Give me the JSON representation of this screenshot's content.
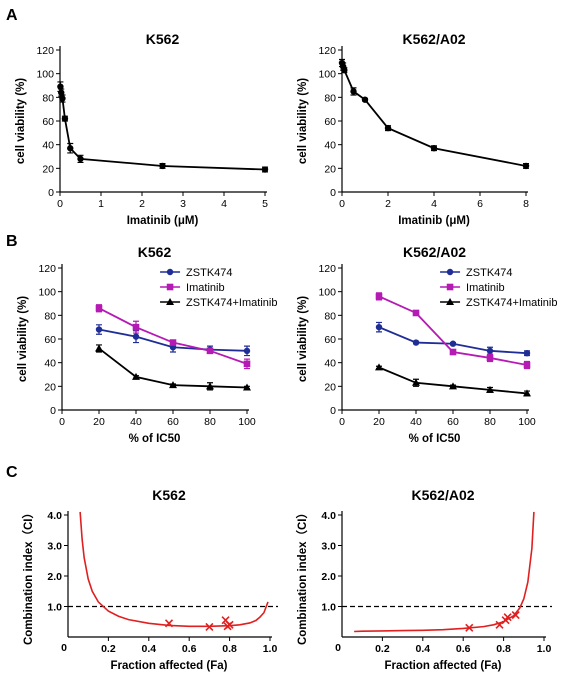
{
  "panels": {
    "A": "A",
    "B": "B",
    "C": "C"
  },
  "chart_data": [
    {
      "id": "A1",
      "panel": "A",
      "type": "line",
      "title": "K562",
      "xlabel": "Imatinib (μM)",
      "ylabel": "cell viability (%)",
      "xlim": [
        0,
        5
      ],
      "ylim": [
        0,
        120
      ],
      "xticks": [
        0,
        1,
        2,
        3,
        4,
        5
      ],
      "yticks": [
        0,
        20,
        40,
        60,
        80,
        100,
        120
      ],
      "series": [
        {
          "color": "#000000",
          "marker": "dot",
          "error_bars": true,
          "x": [
            0.01,
            0.03,
            0.06,
            0.12,
            0.25,
            0.5,
            2.5,
            5
          ],
          "y": [
            89,
            84,
            79,
            62,
            37,
            28,
            22,
            19
          ],
          "err": [
            4,
            3,
            3,
            2,
            4,
            3,
            2,
            2
          ]
        }
      ]
    },
    {
      "id": "A2",
      "panel": "A",
      "type": "line",
      "title": "K562/A02",
      "xlabel": "Imatinib (μM)",
      "ylabel": "cell viability (%)",
      "xlim": [
        0,
        8
      ],
      "ylim": [
        0,
        120
      ],
      "xticks": [
        0,
        2,
        4,
        6,
        8
      ],
      "yticks": [
        0,
        20,
        40,
        60,
        80,
        100,
        120
      ],
      "series": [
        {
          "color": "#000000",
          "marker": "dot",
          "error_bars": true,
          "x": [
            0,
            0.05,
            0.1,
            0.5,
            1,
            2,
            4,
            8
          ],
          "y": [
            109,
            106,
            103,
            85,
            78,
            54,
            37,
            22
          ],
          "err": [
            3,
            3,
            2,
            3,
            1,
            2,
            2,
            2
          ]
        }
      ]
    },
    {
      "id": "B1",
      "panel": "B",
      "type": "line",
      "title": "K562",
      "xlabel": "% of IC50",
      "ylabel": "cell viability (%)",
      "xlim": [
        0,
        100
      ],
      "ylim": [
        0,
        120
      ],
      "xticks": [
        0,
        20,
        40,
        60,
        80,
        100
      ],
      "yticks": [
        0,
        20,
        40,
        60,
        80,
        100,
        120
      ],
      "legend": "top-right",
      "series": [
        {
          "name": "ZSTK474",
          "color": "#1f2d96",
          "marker": "dot",
          "error_bars": true,
          "x": [
            20,
            40,
            60,
            80,
            100
          ],
          "y": [
            68,
            62,
            53,
            51,
            50
          ],
          "err": [
            4,
            5,
            4,
            3,
            4
          ]
        },
        {
          "name": "Imatinib",
          "color": "#b51ab5",
          "marker": "square",
          "error_bars": true,
          "x": [
            20,
            40,
            60,
            80,
            100
          ],
          "y": [
            86,
            70,
            57,
            50,
            39
          ],
          "err": [
            3,
            5,
            2,
            2,
            4
          ]
        },
        {
          "name": "ZSTK474+Imatinib",
          "color": "#000000",
          "marker": "triangle",
          "error_bars": true,
          "x": [
            20,
            40,
            60,
            80,
            100
          ],
          "y": [
            52,
            28,
            21,
            20,
            19
          ],
          "err": [
            3,
            1,
            1,
            3,
            1
          ]
        }
      ]
    },
    {
      "id": "B2",
      "panel": "B",
      "type": "line",
      "title": "K562/A02",
      "xlabel": "% of IC50",
      "ylabel": "cell viability (%)",
      "xlim": [
        0,
        100
      ],
      "ylim": [
        0,
        120
      ],
      "xticks": [
        0,
        20,
        40,
        60,
        80,
        100
      ],
      "yticks": [
        0,
        20,
        40,
        60,
        80,
        100,
        120
      ],
      "legend": "top-right",
      "series": [
        {
          "name": "ZSTK474",
          "color": "#1f2d96",
          "marker": "dot",
          "error_bars": true,
          "x": [
            20,
            40,
            60,
            80,
            100
          ],
          "y": [
            70,
            57,
            56,
            50,
            48
          ],
          "err": [
            4,
            1,
            1,
            3,
            2
          ]
        },
        {
          "name": "Imatinib",
          "color": "#b51ab5",
          "marker": "square",
          "error_bars": true,
          "x": [
            20,
            40,
            60,
            80,
            100
          ],
          "y": [
            96,
            82,
            49,
            44,
            38
          ],
          "err": [
            3,
            2,
            1,
            3,
            3
          ]
        },
        {
          "name": "ZSTK474+Imatinib",
          "color": "#000000",
          "marker": "triangle",
          "error_bars": true,
          "x": [
            20,
            40,
            60,
            80,
            100
          ],
          "y": [
            36,
            23,
            20,
            17,
            14
          ],
          "err": [
            1,
            3,
            1,
            2,
            2
          ]
        }
      ]
    },
    {
      "id": "C1",
      "panel": "C",
      "type": "line",
      "title": "K562",
      "xlabel": "Fraction affected (Fa)",
      "ylabel": "Combination index（CI）",
      "xlim": [
        0,
        1
      ],
      "ylim": [
        0,
        4
      ],
      "xticks": [
        0.2,
        0.4,
        0.6,
        0.8,
        1.0
      ],
      "yticks": [
        1.0,
        2.0,
        3.0,
        4.0
      ],
      "reference_line": 1.0,
      "curve": {
        "color": "#e02020",
        "x": [
          0.06,
          0.07,
          0.08,
          0.1,
          0.12,
          0.15,
          0.2,
          0.25,
          0.3,
          0.4,
          0.5,
          0.6,
          0.7,
          0.8,
          0.85,
          0.9,
          0.93,
          0.95,
          0.97,
          0.99
        ],
        "y": [
          4.1,
          3.2,
          2.6,
          1.9,
          1.5,
          1.15,
          0.85,
          0.68,
          0.57,
          0.45,
          0.38,
          0.35,
          0.35,
          0.37,
          0.4,
          0.46,
          0.54,
          0.65,
          0.8,
          1.15
        ]
      },
      "points": {
        "color": "#e02020",
        "marker": "x",
        "x": [
          0.5,
          0.7,
          0.78,
          0.79,
          0.8
        ],
        "y": [
          0.45,
          0.33,
          0.55,
          0.35,
          0.4
        ]
      }
    },
    {
      "id": "C2",
      "panel": "C",
      "type": "line",
      "title": "K562/A02",
      "xlabel": "Fraction affected (Fa)",
      "ylabel": "Combination index（CI）",
      "xlim": [
        0,
        1
      ],
      "ylim": [
        0,
        4
      ],
      "xticks": [
        0.2,
        0.4,
        0.6,
        0.8,
        1.0
      ],
      "yticks": [
        1.0,
        2.0,
        3.0,
        4.0
      ],
      "reference_line": 1.0,
      "curve": {
        "color": "#e02020",
        "x": [
          0.06,
          0.1,
          0.2,
          0.3,
          0.4,
          0.5,
          0.6,
          0.7,
          0.75,
          0.8,
          0.85,
          0.88,
          0.9,
          0.92,
          0.94,
          0.95
        ],
        "y": [
          0.18,
          0.19,
          0.2,
          0.21,
          0.22,
          0.24,
          0.28,
          0.34,
          0.4,
          0.5,
          0.7,
          0.95,
          1.25,
          1.8,
          2.9,
          4.1
        ]
      },
      "points": {
        "color": "#e02020",
        "marker": "x",
        "x": [
          0.63,
          0.78,
          0.81,
          0.82,
          0.86
        ],
        "y": [
          0.3,
          0.4,
          0.55,
          0.65,
          0.72
        ]
      }
    }
  ]
}
